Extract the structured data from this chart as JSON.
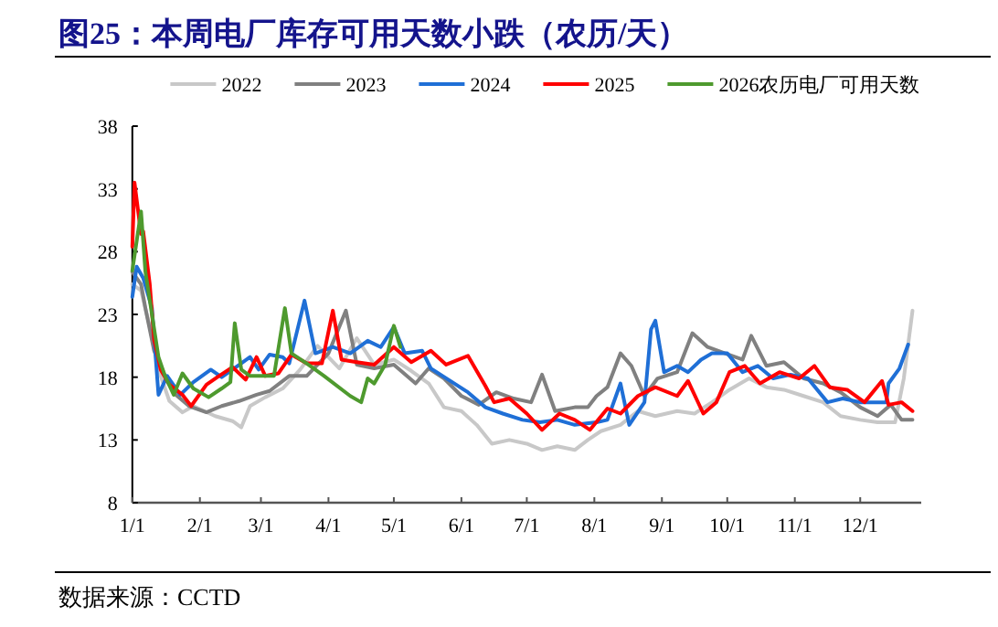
{
  "chart_data": {
    "type": "line",
    "title": "图25：本周电厂库存可用天数小跌（农历/天）",
    "annotations": [
      "数据来源：CCTD"
    ],
    "xlim": [
      "--01-01",
      "--12-29"
    ],
    "ylim": [
      8,
      38
    ],
    "yticks": [
      8,
      13,
      18,
      23,
      28,
      33,
      38
    ],
    "xticks": [
      {
        "value": "--01-01",
        "label": "1/1"
      },
      {
        "value": "--02-01",
        "label": "2/1"
      },
      {
        "value": "--03-01",
        "label": "3/1"
      },
      {
        "value": "--04-01",
        "label": "4/1"
      },
      {
        "value": "--05-01",
        "label": "5/1"
      },
      {
        "value": "--06-01",
        "label": "6/1"
      },
      {
        "value": "--07-01",
        "label": "7/1"
      },
      {
        "value": "--08-01",
        "label": "8/1"
      },
      {
        "value": "--09-01",
        "label": "9/1"
      },
      {
        "value": "--10-01",
        "label": "10/1"
      },
      {
        "value": "--11-01",
        "label": "11/1"
      },
      {
        "value": "--12-01",
        "label": "12/1"
      }
    ],
    "grid": false,
    "legend": "top",
    "marker": "none",
    "line_style": "solid",
    "series": [
      {
        "name": "2022",
        "color": "#c8c8c8",
        "x": [
          "--01-01",
          "--01-05",
          "--01-09",
          "--01-13",
          "--01-18",
          "--01-24",
          "--01-29",
          "--02-08",
          "--02-16",
          "--02-20",
          "--02-24",
          "--03-03",
          "--03-11",
          "--03-19",
          "--03-27",
          "--04-06",
          "--04-14",
          "--04-22",
          "--05-01",
          "--05-09",
          "--05-17",
          "--05-24",
          "--06-01",
          "--06-08",
          "--06-15",
          "--06-23",
          "--07-01",
          "--07-08",
          "--07-15",
          "--07-23",
          "--07-29",
          "--08-04",
          "--08-13",
          "--08-21",
          "--08-29",
          "--09-08",
          "--09-16",
          "--09-24",
          "--10-02",
          "--10-11",
          "--10-19",
          "--10-27",
          "--11-05",
          "--11-14",
          "--11-22",
          "--12-01",
          "--12-09",
          "--12-17",
          "--12-21",
          "--12-25"
        ],
        "values": [
          25.4,
          24.9,
          22,
          18.6,
          16.1,
          15.2,
          15.7,
          14.9,
          14.5,
          14.0,
          15.7,
          16.4,
          17.1,
          18.6,
          20.5,
          18.7,
          21.1,
          19.0,
          19.4,
          18.5,
          17.5,
          15.6,
          15.3,
          14.2,
          12.7,
          13.0,
          12.7,
          12.2,
          12.5,
          12.2,
          13.0,
          13.7,
          14.2,
          15.3,
          14.9,
          15.3,
          15.1,
          16.0,
          17.0,
          17.9,
          17.2,
          17.0,
          16.5,
          16.0,
          14.9,
          14.6,
          14.4,
          14.4,
          17.9,
          23.3
        ]
      },
      {
        "name": "2023",
        "color": "#808080",
        "x": [
          "--01-01",
          "--01-05",
          "--01-07",
          "--01-11",
          "--01-16",
          "--01-21",
          "--01-27",
          "--02-04",
          "--02-11",
          "--02-19",
          "--02-27",
          "--03-05",
          "--03-14",
          "--03-22",
          "--04-01",
          "--04-09",
          "--04-14",
          "--04-22",
          "--05-01",
          "--05-11",
          "--05-17",
          "--05-24",
          "--06-01",
          "--06-09",
          "--06-17",
          "--06-25",
          "--07-03",
          "--07-08",
          "--07-14",
          "--07-23",
          "--07-29",
          "--08-02",
          "--08-07",
          "--08-13",
          "--08-18",
          "--08-24",
          "--08-30",
          "--09-08",
          "--09-15",
          "--09-22",
          "--09-30",
          "--10-08",
          "--10-12",
          "--10-19",
          "--10-27",
          "--11-05",
          "--11-14",
          "--11-22",
          "--12-01",
          "--12-09",
          "--12-15",
          "--12-20",
          "--12-25"
        ],
        "values": [
          26.4,
          25.4,
          23.5,
          20.1,
          18.1,
          16.6,
          15.7,
          15.2,
          15.7,
          16.1,
          16.6,
          16.9,
          18.1,
          18.1,
          19.9,
          23.3,
          19.0,
          18.7,
          19.0,
          17.5,
          18.7,
          17.9,
          16.5,
          15.8,
          16.8,
          16.3,
          16.0,
          18.2,
          15.3,
          15.6,
          15.6,
          16.5,
          17.2,
          19.9,
          18.9,
          16.5,
          17.9,
          18.4,
          21.5,
          20.4,
          19.9,
          19.4,
          21.3,
          18.9,
          19.2,
          17.9,
          17.5,
          16.8,
          15.6,
          14.9,
          15.8,
          14.6,
          14.6
        ]
      },
      {
        "name": "2024",
        "color": "#1f6fd6",
        "x": [
          "--01-01",
          "--01-03",
          "--01-06",
          "--01-10",
          "--01-13",
          "--01-17",
          "--01-23",
          "--01-29",
          "--02-06",
          "--02-11",
          "--02-16",
          "--02-24",
          "--02-28",
          "--03-05",
          "--03-11",
          "--03-14",
          "--03-21",
          "--03-26",
          "--04-03",
          "--04-11",
          "--04-19",
          "--04-25",
          "--05-01",
          "--05-06",
          "--05-14",
          "--05-18",
          "--05-26",
          "--06-04",
          "--06-12",
          "--06-20",
          "--06-29",
          "--07-07",
          "--07-15",
          "--07-23",
          "--08-02",
          "--08-07",
          "--08-13",
          "--08-17",
          "--08-24",
          "--08-27",
          "--08-29",
          "--09-02",
          "--09-08",
          "--09-13",
          "--09-19",
          "--09-24",
          "--10-01",
          "--10-08",
          "--10-15",
          "--10-22",
          "--10-30",
          "--11-07",
          "--11-16",
          "--11-23",
          "--12-01",
          "--12-09",
          "--12-13",
          "--12-14",
          "--12-19",
          "--12-23"
        ],
        "values": [
          24.4,
          26.8,
          25.9,
          23.5,
          16.6,
          18.1,
          16.6,
          17.6,
          18.6,
          18.0,
          18.6,
          19.6,
          18.6,
          19.8,
          19.6,
          19.1,
          24.1,
          19.9,
          20.4,
          19.9,
          20.9,
          20.4,
          22.0,
          19.9,
          20.1,
          18.7,
          17.8,
          16.8,
          15.6,
          15.1,
          14.6,
          14.4,
          14.6,
          14.2,
          14.4,
          14.6,
          17.5,
          14.2,
          16.0,
          21.8,
          22.5,
          18.4,
          18.9,
          18.4,
          19.4,
          19.9,
          19.9,
          18.4,
          18.9,
          17.9,
          18.2,
          17.9,
          16.0,
          16.3,
          16.0,
          16.0,
          16.0,
          17.5,
          18.7,
          20.6
        ]
      },
      {
        "name": "2025",
        "color": "#ff0000",
        "x": [
          "--01-01",
          "--01-02",
          "--01-05",
          "--01-06",
          "--01-09",
          "--01-11",
          "--01-14",
          "--01-18",
          "--01-24",
          "--01-28",
          "--02-04",
          "--02-09",
          "--02-16",
          "--02-22",
          "--02-27",
          "--03-03",
          "--03-09",
          "--03-15",
          "--03-22",
          "--03-29",
          "--04-03",
          "--04-07",
          "--04-14",
          "--04-22",
          "--05-01",
          "--05-09",
          "--05-18",
          "--05-25",
          "--06-04",
          "--06-12",
          "--06-16",
          "--06-23",
          "--07-01",
          "--07-08",
          "--07-16",
          "--07-23",
          "--07-30",
          "--08-07",
          "--08-13",
          "--08-21",
          "--08-29",
          "--09-08",
          "--09-13",
          "--09-20",
          "--09-26",
          "--10-02",
          "--10-09",
          "--10-16",
          "--10-25",
          "--11-03",
          "--11-10",
          "--11-17",
          "--11-25",
          "--12-03",
          "--12-11",
          "--12-14",
          "--12-20",
          "--12-25"
        ],
        "values": [
          28.4,
          33.5,
          29.4,
          29.6,
          25.4,
          21.0,
          18.6,
          17.4,
          16.6,
          15.7,
          17.4,
          18.0,
          18.8,
          17.8,
          19.6,
          18.1,
          18.3,
          19.8,
          19.1,
          19.1,
          23.3,
          19.4,
          19.2,
          19.0,
          20.4,
          19.2,
          20.1,
          19.0,
          19.7,
          17.3,
          16.0,
          16.3,
          15.1,
          13.8,
          15.1,
          14.6,
          13.8,
          15.5,
          15.1,
          16.5,
          17.2,
          16.5,
          17.7,
          15.1,
          16.0,
          18.4,
          18.9,
          17.5,
          18.4,
          17.9,
          18.9,
          17.2,
          17.0,
          16.0,
          17.7,
          15.8,
          16.0,
          15.3
        ]
      },
      {
        "name": "2026农历电厂可用天数",
        "color": "#4e9a2e",
        "x": [
          "--01-01",
          "--01-05",
          "--01-07",
          "--01-10",
          "--01-13",
          "--01-16",
          "--01-20",
          "--01-24",
          "--01-29",
          "--02-05",
          "--02-11",
          "--02-15",
          "--02-17",
          "--02-20",
          "--02-24",
          "--03-01",
          "--03-07",
          "--03-12",
          "--03-15",
          "--03-22",
          "--03-30",
          "--04-11",
          "--04-16",
          "--04-19",
          "--04-22",
          "--04-27",
          "--05-01",
          "--05-04"
        ],
        "values": [
          26.5,
          31.2,
          26.4,
          23.0,
          19.6,
          18.1,
          16.6,
          18.3,
          17.1,
          16.4,
          17.1,
          17.6,
          22.3,
          18.6,
          18.1,
          18.1,
          18.1,
          23.5,
          19.9,
          19.1,
          18.1,
          16.5,
          16.0,
          17.9,
          17.5,
          19.0,
          22.1,
          20.4
        ]
      }
    ]
  }
}
